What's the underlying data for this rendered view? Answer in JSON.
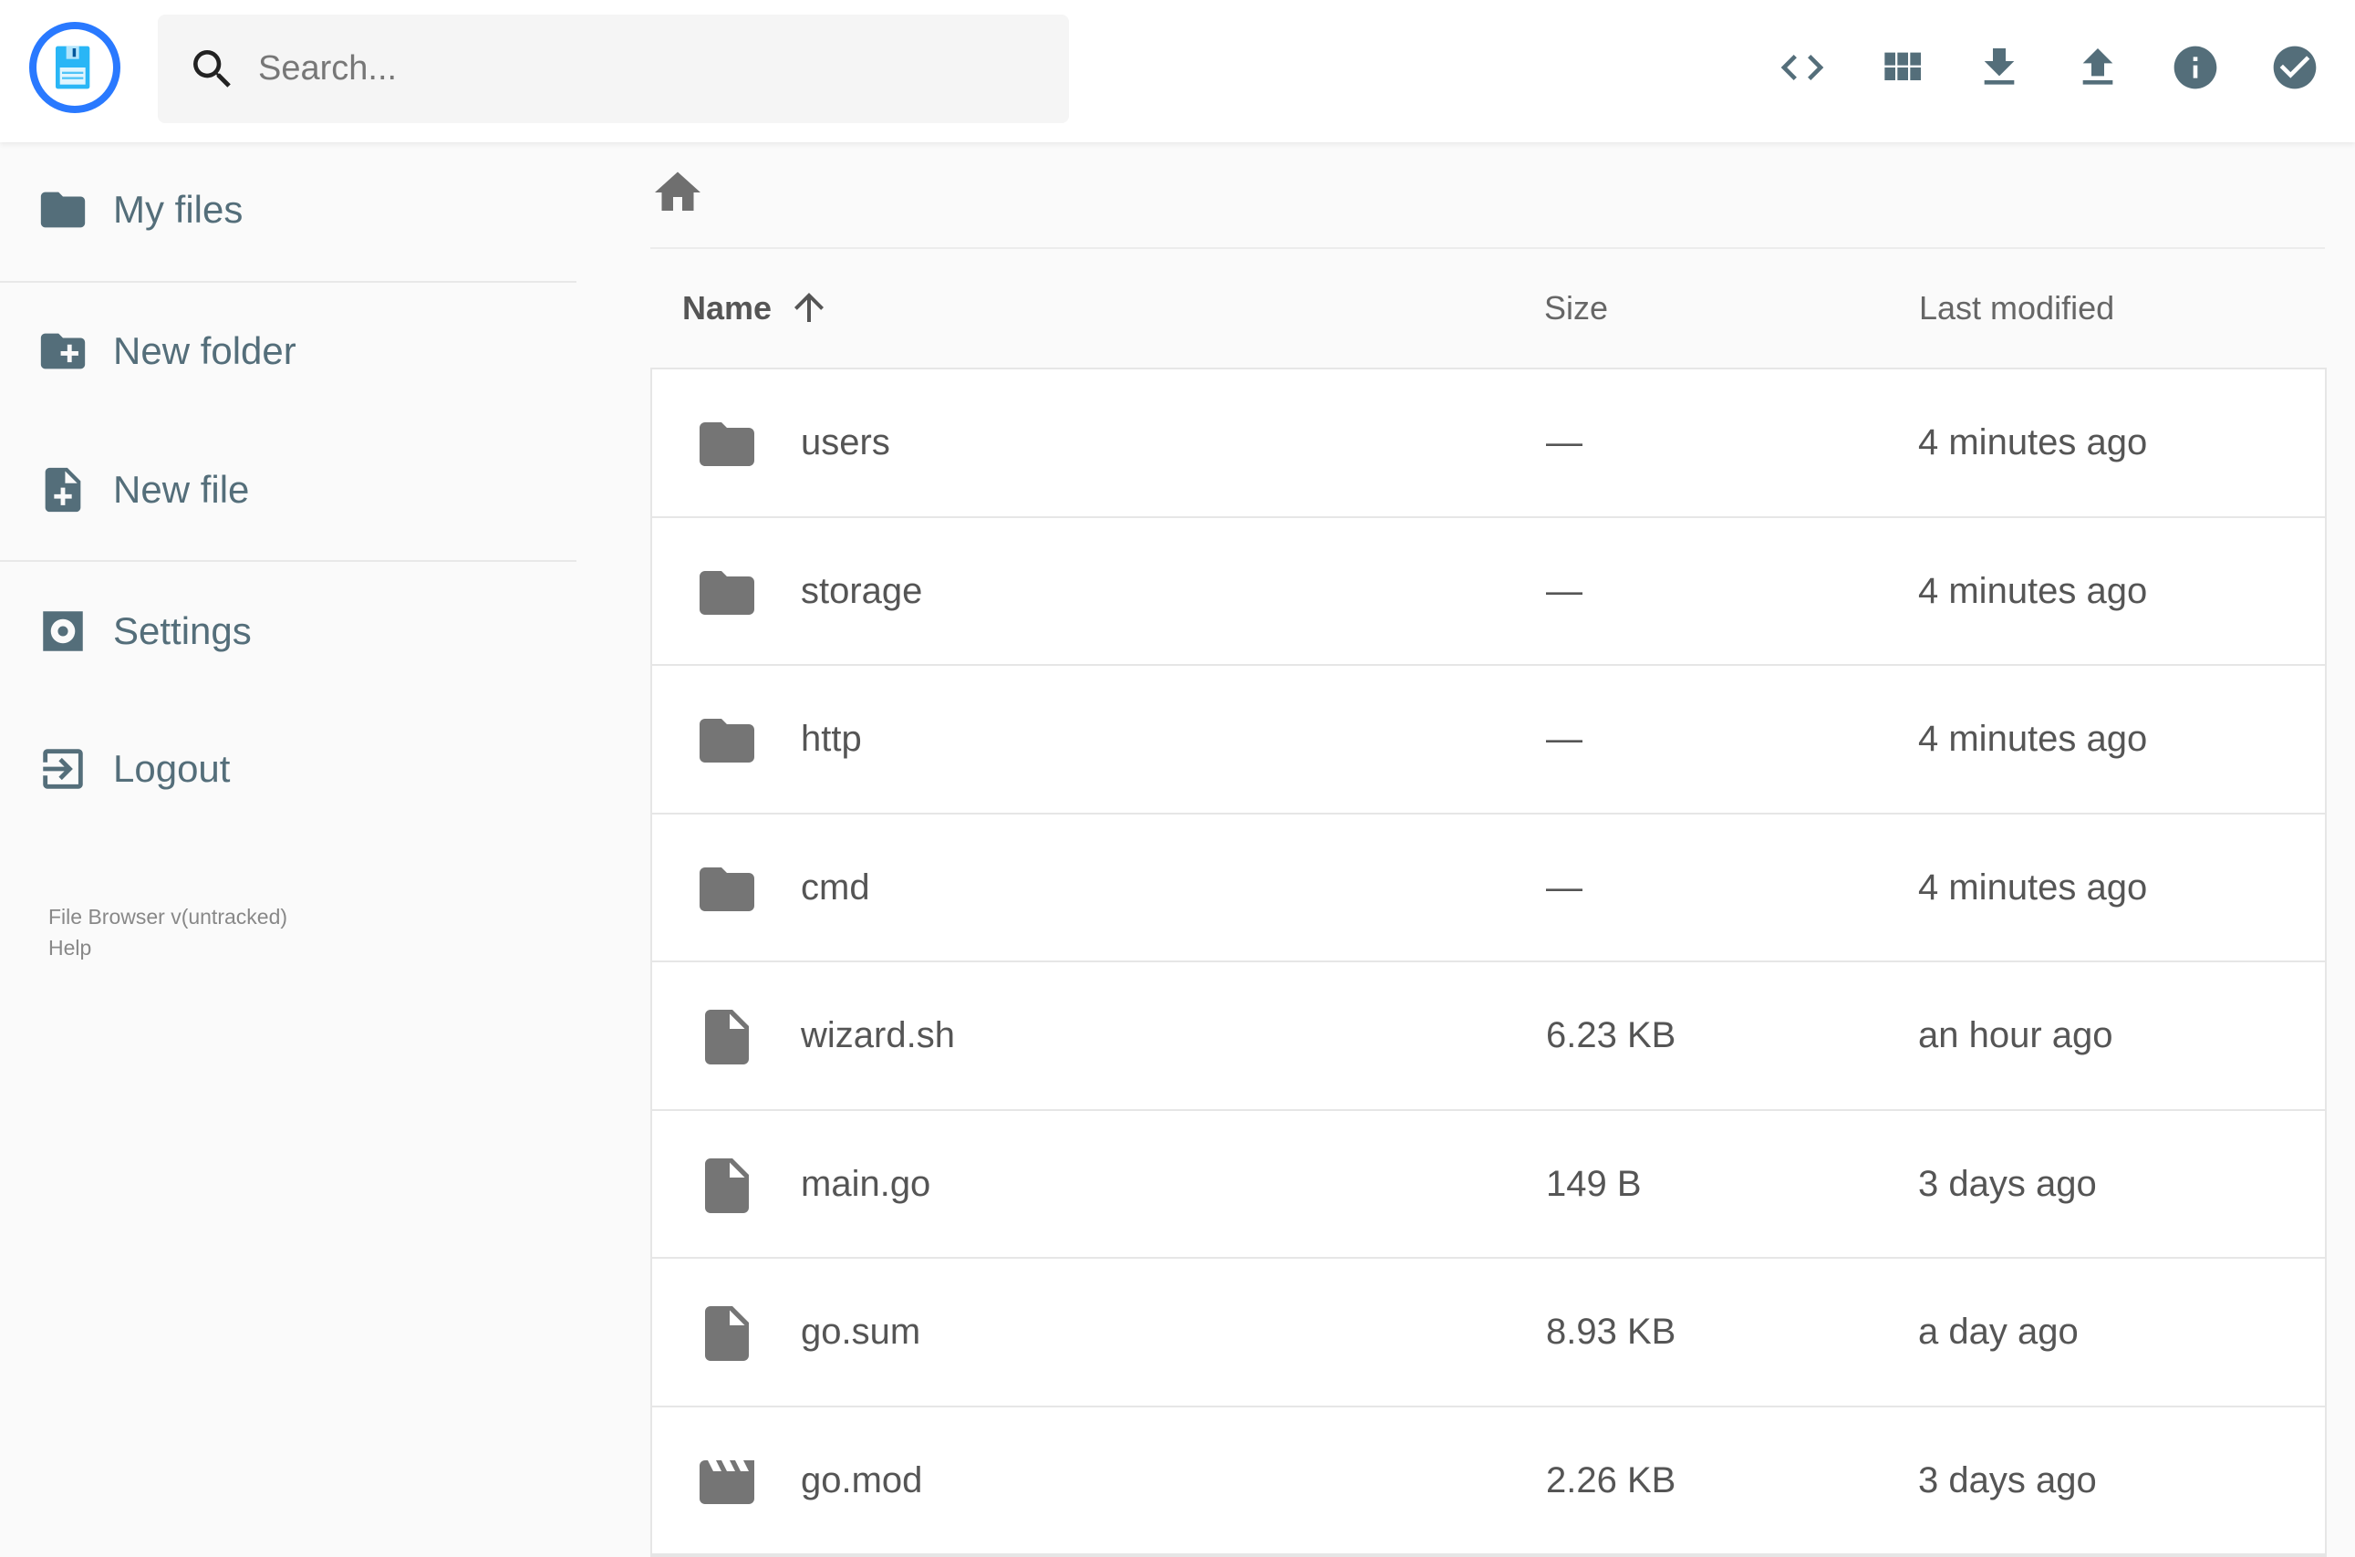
{
  "header": {
    "search_placeholder": "Search...",
    "actions": [
      "code-view-icon",
      "grid-view-icon",
      "download-icon",
      "upload-icon",
      "info-icon",
      "check-circle-icon"
    ]
  },
  "sidebar": {
    "items": [
      {
        "label": "My files",
        "icon": "folder-icon"
      },
      {
        "label": "New folder",
        "icon": "create-new-folder-icon"
      },
      {
        "label": "New file",
        "icon": "note-add-icon"
      },
      {
        "label": "Settings",
        "icon": "settings-icon"
      },
      {
        "label": "Logout",
        "icon": "exit-icon"
      }
    ],
    "footer": {
      "version": "File Browser v(untracked)",
      "help": "Help"
    }
  },
  "table": {
    "headers": {
      "name": "Name",
      "size": "Size",
      "modified": "Last modified"
    },
    "sort": "name-ascending",
    "rows": [
      {
        "type": "folder",
        "name": "users",
        "size": "—",
        "modified": "4 minutes ago"
      },
      {
        "type": "folder",
        "name": "storage",
        "size": "—",
        "modified": "4 minutes ago"
      },
      {
        "type": "folder",
        "name": "http",
        "size": "—",
        "modified": "4 minutes ago"
      },
      {
        "type": "folder",
        "name": "cmd",
        "size": "—",
        "modified": "4 minutes ago"
      },
      {
        "type": "file",
        "name": "wizard.sh",
        "size": "6.23 KB",
        "modified": "an hour ago"
      },
      {
        "type": "file",
        "name": "main.go",
        "size": "149 B",
        "modified": "3 days ago"
      },
      {
        "type": "file",
        "name": "go.sum",
        "size": "8.93 KB",
        "modified": "a day ago"
      },
      {
        "type": "movie",
        "name": "go.mod",
        "size": "2.26 KB",
        "modified": "3 days ago"
      }
    ]
  },
  "colors": {
    "accent": "#2979ff",
    "icon": "#546e7a"
  }
}
